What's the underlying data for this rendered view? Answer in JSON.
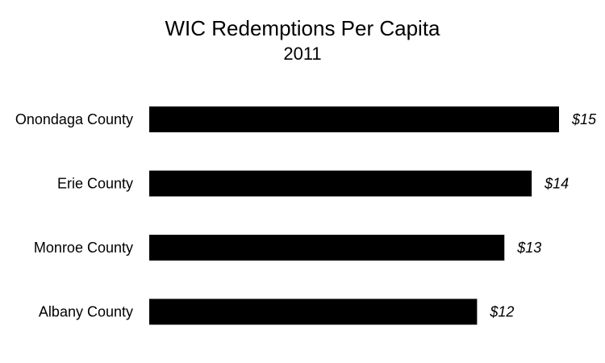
{
  "chart_data": {
    "type": "bar",
    "orientation": "horizontal",
    "title": "WIC Redemptions Per Capita",
    "subtitle": "2011",
    "categories": [
      "Onondaga County",
      "Erie County",
      "Monroe County",
      "Albany County"
    ],
    "values": [
      15,
      14,
      13,
      12
    ],
    "value_labels": [
      "$15",
      "$14",
      "$13",
      "$12"
    ],
    "xlabel": "",
    "ylabel": "",
    "xlim": [
      0,
      15
    ],
    "grid": false,
    "legend": "none",
    "bar_color": "#000000"
  }
}
